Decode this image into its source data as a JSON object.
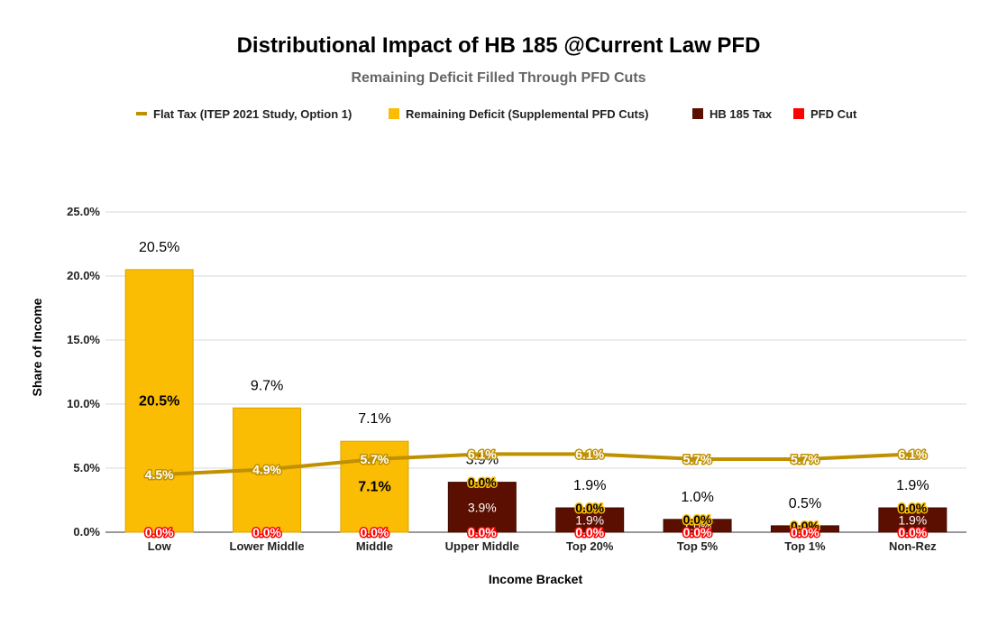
{
  "chart_data": {
    "type": "bar",
    "title": "Distributional Impact of HB 185 @Current Law PFD",
    "subtitle": "Remaining Deficit Filled Through PFD Cuts",
    "xlabel": "Income Bracket",
    "ylabel": "Share of Income",
    "ylim": [
      0,
      25
    ],
    "yticks": [
      "0.0%",
      "5.0%",
      "10.0%",
      "15.0%",
      "20.0%",
      "25.0%"
    ],
    "grid": true,
    "legend_position": "top",
    "stacked": true,
    "categories": [
      "Low",
      "Lower Middle",
      "Middle",
      "Upper Middle",
      "Top 20%",
      "Top 5%",
      "Top 1%",
      "Non-Rez"
    ],
    "series": [
      {
        "name": "Flat Tax (ITEP 2021 Study, Option 1)",
        "type": "line",
        "color": "#bf9000",
        "values": [
          4.5,
          4.9,
          5.7,
          6.1,
          6.1,
          5.7,
          5.7,
          6.1
        ],
        "labels": [
          "4.5%",
          "4.9%",
          "5.7%",
          "6.1%",
          "6.1%",
          "5.7%",
          "5.7%",
          "6.1%"
        ]
      },
      {
        "name": "Remaining Deficit (Supplemental PFD Cuts)",
        "type": "bar",
        "color": "#fbbc04",
        "values": [
          20.5,
          9.7,
          7.1,
          0.0,
          0.0,
          0.0,
          0.0,
          0.0
        ],
        "labels": [
          "20.5%",
          "",
          "7.1%",
          "0.0%",
          "0.0%",
          "0.0%",
          "0.0%",
          "0.0%"
        ]
      },
      {
        "name": "HB 185 Tax",
        "type": "bar",
        "color": "#5b0f00",
        "values": [
          0,
          0,
          0,
          3.9,
          1.9,
          1.0,
          0.5,
          1.9
        ],
        "labels": [
          "",
          "",
          "",
          "3.9%",
          "1.9%",
          "1.0%",
          "0.5%",
          "1.9%"
        ]
      },
      {
        "name": "PFD Cut",
        "type": "bar",
        "color": "#ff0000",
        "values": [
          0,
          0,
          0,
          0,
          0,
          0,
          0,
          0
        ],
        "labels": [
          "0.0%",
          "0.0%",
          "0.0%",
          "0.0%",
          "0.0%",
          "0.0%",
          "0.0%",
          "0.0%"
        ]
      }
    ],
    "totals": [
      20.5,
      9.7,
      7.1,
      3.9,
      1.9,
      1.0,
      0.5,
      1.9
    ],
    "total_labels": [
      "20.5%",
      "9.7%",
      "7.1%",
      "3.9%",
      "1.9%",
      "1.0%",
      "0.5%",
      "1.9%"
    ]
  }
}
